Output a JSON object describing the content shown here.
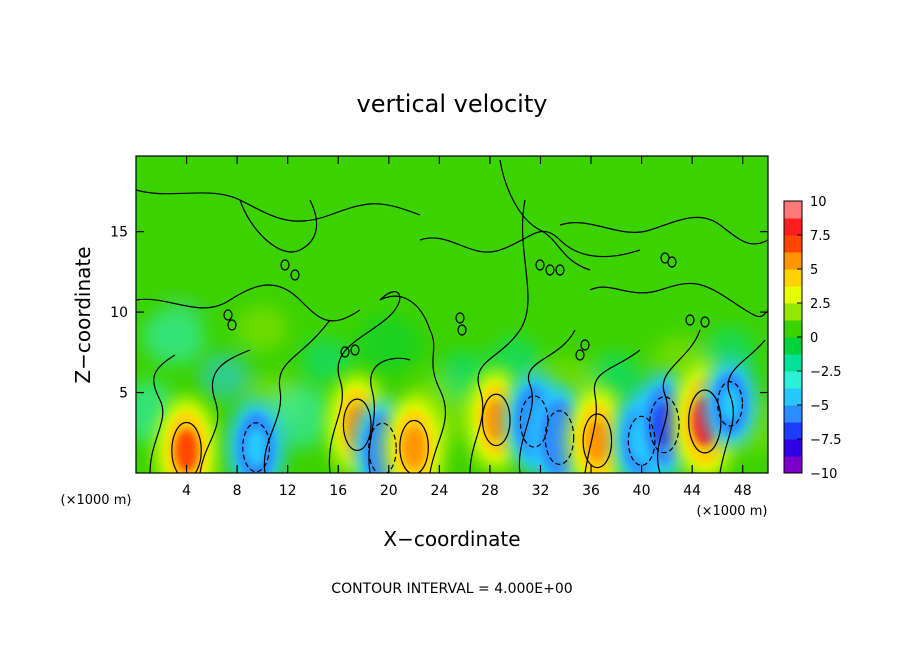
{
  "chart_data": {
    "type": "heatmap",
    "title": "vertical velocity",
    "xlabel": "X−coordinate",
    "ylabel": "Z−coordinate",
    "x_unit": "(×1000 m)",
    "y_unit": "(×1000 m)",
    "xlim": [
      0,
      50
    ],
    "ylim": [
      0,
      19.7
    ],
    "x_ticks": [
      4,
      8,
      12,
      16,
      20,
      24,
      28,
      32,
      36,
      40,
      44,
      48
    ],
    "y_ticks": [
      5,
      10,
      15
    ],
    "colorbar": {
      "range": [
        -10,
        10
      ],
      "ticks": [
        "10",
        "7.5",
        "5",
        "2.5",
        "0",
        "−2.5",
        "−5",
        "−7.5",
        "−10"
      ],
      "colors": [
        "#7a00c8",
        "#3200e6",
        "#1e3cff",
        "#2c8cff",
        "#28c8ff",
        "#2ef0d6",
        "#00e096",
        "#00d23c",
        "#3cd200",
        "#96e600",
        "#e6ff00",
        "#ffd200",
        "#ff9600",
        "#ff4600",
        "#ff1e1e",
        "#ff7878"
      ]
    },
    "features": [
      {
        "x": 4.0,
        "z": 1.4,
        "value": 6.5
      },
      {
        "x": 9.5,
        "z": 1.6,
        "value": -5.0
      },
      {
        "x": 17.5,
        "z": 3.0,
        "value": 5.5
      },
      {
        "x": 19.5,
        "z": 1.5,
        "value": -5.5
      },
      {
        "x": 22.0,
        "z": 1.6,
        "value": 6.0
      },
      {
        "x": 28.5,
        "z": 3.3,
        "value": 5.5
      },
      {
        "x": 31.5,
        "z": 3.2,
        "value": -5.5
      },
      {
        "x": 33.5,
        "z": 2.2,
        "value": -6.0
      },
      {
        "x": 36.5,
        "z": 2.0,
        "value": 6.0
      },
      {
        "x": 40.0,
        "z": 2.0,
        "value": -5.0
      },
      {
        "x": 41.8,
        "z": 3.0,
        "value": -6.5
      },
      {
        "x": 45.0,
        "z": 3.2,
        "value": 8.0
      },
      {
        "x": 47.0,
        "z": 4.3,
        "value": -4.0
      }
    ],
    "footer": "CONTOUR INTERVAL = 4.000E+00"
  }
}
